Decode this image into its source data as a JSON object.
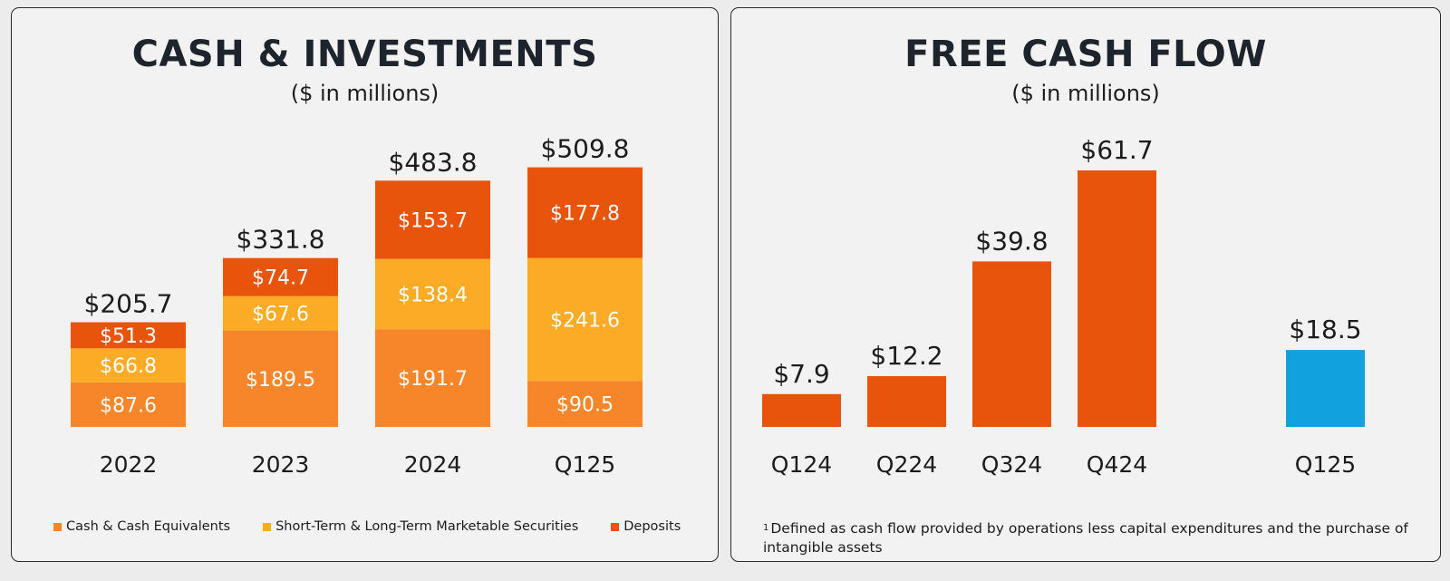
{
  "chart_data": [
    {
      "type": "bar",
      "stacked": true,
      "title": "CASH & INVESTMENTS",
      "subtitle": "($ in millions)",
      "categories": [
        "2022",
        "2023",
        "2024",
        "Q125"
      ],
      "totals": [
        "$205.7",
        "$331.8",
        "$483.8",
        "$509.8"
      ],
      "total_values": [
        205.7,
        331.8,
        483.8,
        509.8
      ],
      "series": [
        {
          "name": "Cash & Cash Equivalents",
          "color": "#f7862b",
          "values": [
            87.6,
            189.5,
            191.7,
            90.5
          ],
          "labels": [
            "$87.6",
            "$189.5",
            "$191.7",
            "$90.5"
          ]
        },
        {
          "name": "Short-Term & Long-Term Marketable Securities",
          "color": "#fcab27",
          "values": [
            66.8,
            67.6,
            138.4,
            241.6
          ],
          "labels": [
            "$66.8",
            "$67.6",
            "$138.4",
            "$241.6"
          ]
        },
        {
          "name": "Deposits",
          "color": "#e9540d",
          "values": [
            51.3,
            74.7,
            153.7,
            177.8
          ],
          "labels": [
            "$51.3",
            "$74.7",
            "$153.7",
            "$177.8"
          ]
        }
      ],
      "legend_position": "bottom",
      "grid": false
    },
    {
      "type": "bar",
      "title": "FREE CASH FLOW",
      "subtitle": "($ in millions)",
      "categories": [
        "Q124",
        "Q224",
        "Q324",
        "Q424",
        "Q125"
      ],
      "values": [
        7.9,
        12.2,
        39.8,
        61.7,
        18.5
      ],
      "labels": [
        "$7.9",
        "$12.2",
        "$39.8",
        "$61.7",
        "$18.5"
      ],
      "colors": [
        "#e9540d",
        "#e9540d",
        "#e9540d",
        "#e9540d",
        "#12a1df"
      ],
      "grid": false,
      "footnote_marker": "1",
      "footnote": "Defined as cash flow provided by operations less capital expenditures and the purchase of intangible assets"
    }
  ]
}
